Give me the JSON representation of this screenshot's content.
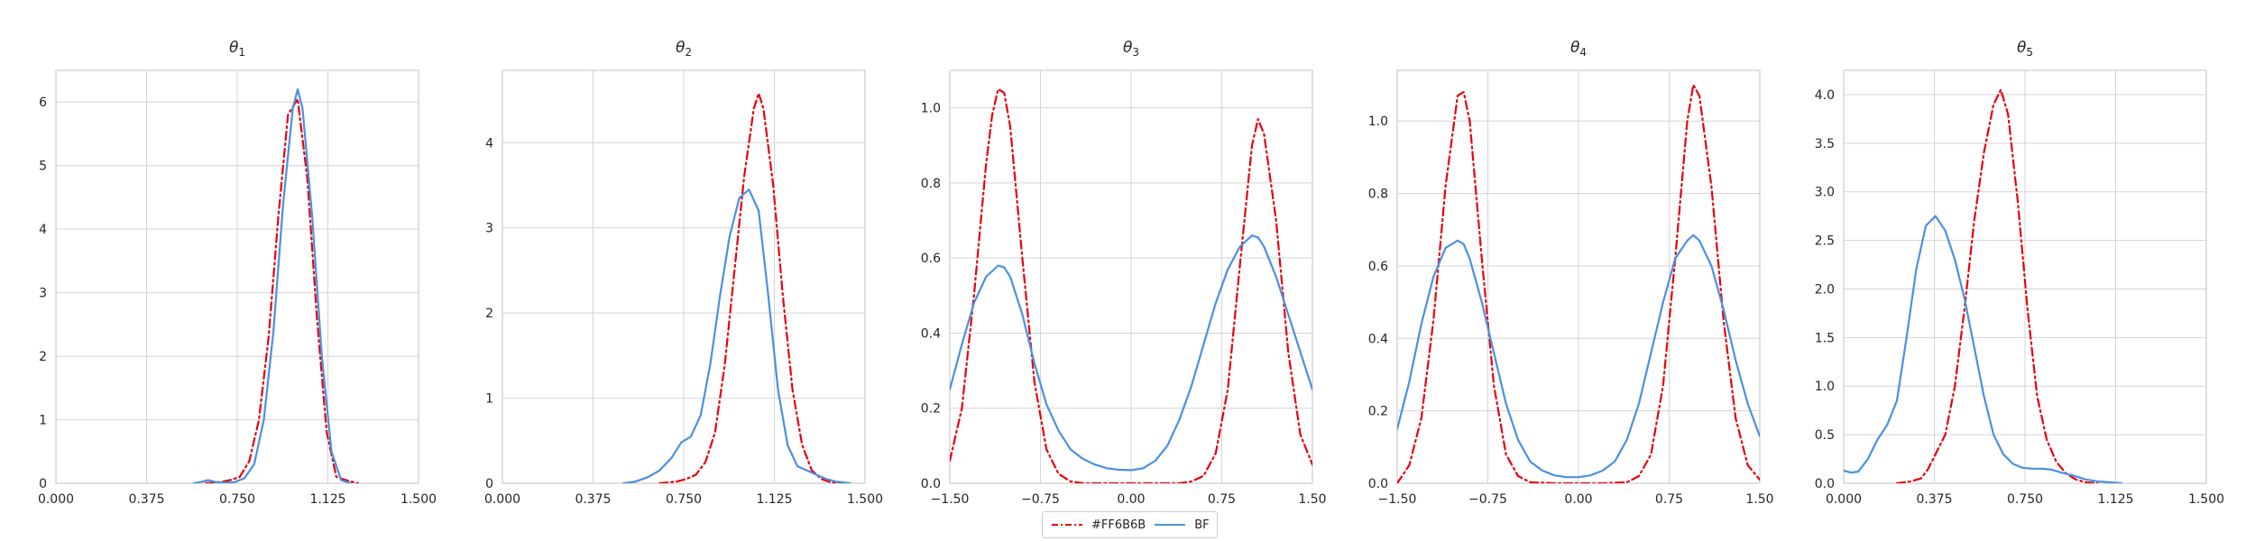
{
  "legend": {
    "placement": "bottom-center",
    "entries": [
      {
        "label": "#FF6B6B",
        "color": "#e8000b",
        "dash": "dashdot"
      },
      {
        "label": "BF",
        "color": "#4a90e2",
        "dash": "solid"
      }
    ]
  },
  "chart_data": [
    {
      "type": "line",
      "title": "θ1",
      "grid": true,
      "xlim": [
        0,
        1.5
      ],
      "ylim": [
        0,
        6.5
      ],
      "xticks": [
        "0.000",
        "0.375",
        "0.750",
        "1.125",
        "1.500"
      ],
      "xtick_values": [
        0,
        0.375,
        0.75,
        1.125,
        1.5
      ],
      "yticks": [
        "0",
        "1",
        "2",
        "3",
        "4",
        "5",
        "6"
      ],
      "ytick_values": [
        0,
        1,
        2,
        3,
        4,
        5,
        6
      ],
      "series": [
        {
          "name": "#FF6B6B",
          "color": "#e8000b",
          "dash": "dashdot",
          "x": [
            0.62,
            0.68,
            0.72,
            0.76,
            0.8,
            0.84,
            0.88,
            0.92,
            0.96,
            1.0,
            1.04,
            1.08,
            1.12,
            1.16,
            1.2,
            1.25
          ],
          "y": [
            0.0,
            0.02,
            0.05,
            0.1,
            0.35,
            1.0,
            2.3,
            4.2,
            5.8,
            6.05,
            4.8,
            2.6,
            0.8,
            0.1,
            0.05,
            0.0
          ]
        },
        {
          "name": "BF",
          "color": "#4a90e2",
          "dash": "solid",
          "x": [
            0.57,
            0.6,
            0.63,
            0.66,
            0.7,
            0.74,
            0.78,
            0.82,
            0.86,
            0.9,
            0.94,
            0.98,
            1.0,
            1.02,
            1.06,
            1.1,
            1.14,
            1.18,
            1.22
          ],
          "y": [
            0.0,
            0.02,
            0.05,
            0.02,
            0.01,
            0.02,
            0.08,
            0.3,
            1.0,
            2.4,
            4.4,
            5.9,
            6.2,
            5.9,
            4.2,
            2.0,
            0.5,
            0.05,
            0.0
          ]
        }
      ]
    },
    {
      "type": "line",
      "title": "θ2",
      "grid": true,
      "xlim": [
        0,
        1.5
      ],
      "ylim": [
        0,
        4.85
      ],
      "xticks": [
        "0.000",
        "0.375",
        "0.750",
        "1.125",
        "1.500"
      ],
      "xtick_values": [
        0,
        0.375,
        0.75,
        1.125,
        1.5
      ],
      "yticks": [
        "0",
        "1",
        "2",
        "3",
        "4"
      ],
      "ytick_values": [
        0,
        1,
        2,
        3,
        4
      ],
      "series": [
        {
          "name": "#FF6B6B",
          "color": "#e8000b",
          "dash": "dashdot",
          "x": [
            0.65,
            0.72,
            0.76,
            0.8,
            0.84,
            0.88,
            0.92,
            0.96,
            1.0,
            1.04,
            1.06,
            1.08,
            1.12,
            1.16,
            1.2,
            1.24,
            1.28,
            1.32,
            1.36,
            1.42
          ],
          "y": [
            0.0,
            0.02,
            0.05,
            0.1,
            0.25,
            0.6,
            1.4,
            2.5,
            3.6,
            4.4,
            4.58,
            4.4,
            3.5,
            2.2,
            1.1,
            0.45,
            0.15,
            0.05,
            0.01,
            0.0
          ]
        },
        {
          "name": "BF",
          "color": "#4a90e2",
          "dash": "solid",
          "x": [
            0.5,
            0.55,
            0.6,
            0.65,
            0.7,
            0.74,
            0.78,
            0.82,
            0.86,
            0.9,
            0.94,
            0.98,
            1.02,
            1.06,
            1.1,
            1.14,
            1.18,
            1.22,
            1.26,
            1.3,
            1.34,
            1.38,
            1.44
          ],
          "y": [
            0.0,
            0.02,
            0.07,
            0.15,
            0.3,
            0.48,
            0.55,
            0.8,
            1.4,
            2.2,
            2.9,
            3.35,
            3.45,
            3.2,
            2.2,
            1.1,
            0.45,
            0.2,
            0.15,
            0.1,
            0.05,
            0.02,
            0.0
          ]
        }
      ]
    },
    {
      "type": "line",
      "title": "θ3",
      "grid": true,
      "xlim": [
        -1.5,
        1.5
      ],
      "ylim": [
        0,
        1.1
      ],
      "xticks": [
        "−1.50",
        "−0.75",
        "0.00",
        "0.75",
        "1.50"
      ],
      "xtick_values": [
        -1.5,
        -0.75,
        0,
        0.75,
        1.5
      ],
      "yticks": [
        "0.0",
        "0.2",
        "0.4",
        "0.6",
        "0.8",
        "1.0"
      ],
      "ytick_values": [
        0,
        0.2,
        0.4,
        0.6,
        0.8,
        1.0
      ],
      "series": [
        {
          "name": "#FF6B6B",
          "color": "#e8000b",
          "dash": "dashdot",
          "x": [
            -1.5,
            -1.4,
            -1.3,
            -1.2,
            -1.15,
            -1.1,
            -1.05,
            -1.0,
            -0.9,
            -0.8,
            -0.7,
            -0.6,
            -0.5,
            -0.4,
            -0.2,
            0.0,
            0.2,
            0.4,
            0.5,
            0.6,
            0.7,
            0.8,
            0.9,
            1.0,
            1.05,
            1.1,
            1.2,
            1.3,
            1.4,
            1.5
          ],
          "y": [
            0.06,
            0.2,
            0.5,
            0.85,
            0.98,
            1.05,
            1.04,
            0.95,
            0.6,
            0.27,
            0.09,
            0.025,
            0.005,
            0.0,
            0.0,
            0.0,
            0.0,
            0.0,
            0.005,
            0.02,
            0.08,
            0.25,
            0.58,
            0.9,
            0.97,
            0.93,
            0.7,
            0.35,
            0.13,
            0.05
          ]
        },
        {
          "name": "BF",
          "color": "#4a90e2",
          "dash": "solid",
          "x": [
            -1.5,
            -1.4,
            -1.3,
            -1.2,
            -1.1,
            -1.05,
            -1.0,
            -0.9,
            -0.8,
            -0.7,
            -0.6,
            -0.5,
            -0.4,
            -0.3,
            -0.2,
            -0.1,
            0.0,
            0.1,
            0.2,
            0.3,
            0.4,
            0.5,
            0.6,
            0.7,
            0.8,
            0.9,
            1.0,
            1.05,
            1.1,
            1.2,
            1.3,
            1.4,
            1.5
          ],
          "y": [
            0.25,
            0.37,
            0.48,
            0.55,
            0.58,
            0.575,
            0.55,
            0.45,
            0.32,
            0.21,
            0.14,
            0.09,
            0.065,
            0.05,
            0.04,
            0.036,
            0.035,
            0.04,
            0.06,
            0.1,
            0.17,
            0.26,
            0.37,
            0.48,
            0.57,
            0.63,
            0.66,
            0.655,
            0.63,
            0.55,
            0.45,
            0.35,
            0.25
          ]
        }
      ]
    },
    {
      "type": "line",
      "title": "θ4",
      "grid": true,
      "xlim": [
        -1.5,
        1.5
      ],
      "ylim": [
        0,
        1.14
      ],
      "xticks": [
        "−1.50",
        "−0.75",
        "0.00",
        "0.75",
        "1.50"
      ],
      "xtick_values": [
        -1.5,
        -0.75,
        0,
        0.75,
        1.5
      ],
      "yticks": [
        "0.0",
        "0.2",
        "0.4",
        "0.6",
        "0.8",
        "1.0"
      ],
      "ytick_values": [
        0,
        0.2,
        0.4,
        0.6,
        0.8,
        1.0
      ],
      "series": [
        {
          "name": "#FF6B6B",
          "color": "#e8000b",
          "dash": "dashdot",
          "x": [
            -1.5,
            -1.4,
            -1.3,
            -1.2,
            -1.1,
            -1.0,
            -0.95,
            -0.9,
            -0.8,
            -0.7,
            -0.6,
            -0.5,
            -0.4,
            -0.2,
            0.0,
            0.2,
            0.4,
            0.5,
            0.6,
            0.7,
            0.8,
            0.9,
            0.95,
            1.0,
            1.1,
            1.2,
            1.3,
            1.4,
            1.5
          ],
          "y": [
            0.0,
            0.05,
            0.18,
            0.45,
            0.82,
            1.07,
            1.08,
            1.0,
            0.62,
            0.27,
            0.08,
            0.02,
            0.003,
            0.0,
            0.0,
            0.0,
            0.003,
            0.02,
            0.08,
            0.27,
            0.62,
            1.0,
            1.1,
            1.07,
            0.82,
            0.45,
            0.18,
            0.05,
            0.01
          ]
        },
        {
          "name": "BF",
          "color": "#4a90e2",
          "dash": "solid",
          "x": [
            -1.5,
            -1.4,
            -1.3,
            -1.2,
            -1.1,
            -1.0,
            -0.95,
            -0.9,
            -0.8,
            -0.7,
            -0.6,
            -0.5,
            -0.4,
            -0.3,
            -0.2,
            -0.1,
            0.0,
            0.1,
            0.2,
            0.3,
            0.4,
            0.5,
            0.6,
            0.7,
            0.8,
            0.9,
            0.95,
            1.0,
            1.1,
            1.2,
            1.3,
            1.4,
            1.5
          ],
          "y": [
            0.15,
            0.28,
            0.44,
            0.57,
            0.65,
            0.67,
            0.66,
            0.62,
            0.5,
            0.36,
            0.22,
            0.12,
            0.06,
            0.035,
            0.022,
            0.017,
            0.017,
            0.022,
            0.035,
            0.06,
            0.12,
            0.22,
            0.36,
            0.5,
            0.62,
            0.67,
            0.685,
            0.67,
            0.6,
            0.48,
            0.34,
            0.22,
            0.13
          ]
        }
      ]
    },
    {
      "type": "line",
      "title": "θ5",
      "grid": true,
      "xlim": [
        0,
        1.5
      ],
      "ylim": [
        0,
        4.25
      ],
      "xticks": [
        "0.000",
        "0.375",
        "0.750",
        "1.125",
        "1.500"
      ],
      "xtick_values": [
        0,
        0.375,
        0.75,
        1.125,
        1.5
      ],
      "yticks": [
        "0.0",
        "0.5",
        "1.0",
        "1.5",
        "2.0",
        "2.5",
        "3.0",
        "3.5",
        "4.0"
      ],
      "ytick_values": [
        0,
        0.5,
        1.0,
        1.5,
        2.0,
        2.5,
        3.0,
        3.5,
        4.0
      ],
      "series": [
        {
          "name": "#FF6B6B",
          "color": "#e8000b",
          "dash": "dashdot",
          "x": [
            0.22,
            0.28,
            0.32,
            0.35,
            0.38,
            0.42,
            0.46,
            0.5,
            0.54,
            0.58,
            0.62,
            0.65,
            0.68,
            0.72,
            0.76,
            0.8,
            0.84,
            0.88,
            0.92,
            0.96,
            1.0,
            1.05
          ],
          "y": [
            0.0,
            0.02,
            0.05,
            0.15,
            0.3,
            0.5,
            1.0,
            1.8,
            2.7,
            3.4,
            3.9,
            4.05,
            3.8,
            2.9,
            1.8,
            0.9,
            0.45,
            0.22,
            0.1,
            0.04,
            0.01,
            0.0
          ]
        },
        {
          "name": "BF",
          "color": "#4a90e2",
          "dash": "solid",
          "x": [
            0.0,
            0.03,
            0.06,
            0.1,
            0.14,
            0.18,
            0.22,
            0.26,
            0.3,
            0.34,
            0.38,
            0.42,
            0.46,
            0.5,
            0.54,
            0.58,
            0.62,
            0.66,
            0.7,
            0.74,
            0.78,
            0.82,
            0.86,
            0.9,
            0.95,
            1.0,
            1.05,
            1.1,
            1.15
          ],
          "y": [
            0.13,
            0.11,
            0.12,
            0.25,
            0.45,
            0.6,
            0.85,
            1.5,
            2.2,
            2.65,
            2.75,
            2.6,
            2.3,
            1.9,
            1.4,
            0.9,
            0.5,
            0.3,
            0.2,
            0.16,
            0.15,
            0.15,
            0.14,
            0.11,
            0.08,
            0.04,
            0.02,
            0.01,
            0.0
          ]
        }
      ]
    }
  ]
}
